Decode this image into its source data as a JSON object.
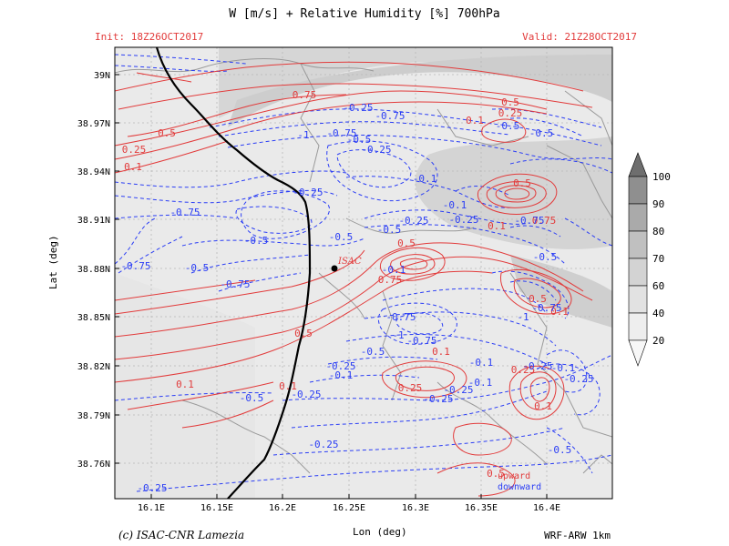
{
  "header": {
    "title": "W [m/s] + Relative Humidity [%] 700hPa",
    "init": "Init: 18Z26OCT2017",
    "valid": "Valid: 21Z28OCT2017"
  },
  "axes": {
    "xlabel": "Lon (deg)",
    "ylabel": "Lat (deg)",
    "x_ticks": [
      "16.1E",
      "16.15E",
      "16.2E",
      "16.25E",
      "16.3E",
      "16.35E",
      "16.4E"
    ],
    "y_ticks": [
      "39N",
      "38.97N",
      "38.94N",
      "38.91N",
      "38.88N",
      "38.85N",
      "38.82N",
      "38.79N",
      "38.76N"
    ]
  },
  "colorbar": {
    "ticks": [
      "100",
      "90",
      "80",
      "70",
      "60",
      "40",
      "20"
    ]
  },
  "legend": {
    "upward": "upward",
    "downward": "downward"
  },
  "station": {
    "label": "ISAC",
    "lon": 16.237,
    "lat": 38.877
  },
  "footer": {
    "copyright": "(c) ISAC-CNR Lamezia",
    "model": "WRF-ARW 1km"
  },
  "contour_labels": {
    "positive": [
      "0.75",
      "0.5",
      "0.25",
      "0.1",
      "0.5",
      "0.25",
      "0.1",
      "0.5",
      "0.75",
      "0.5",
      "0.75",
      "0.1",
      "0.5",
      "0.1",
      "0.25",
      "0.1",
      "0.1",
      "0.25",
      "0.1",
      "0.5",
      "0.5",
      "0.1"
    ],
    "negative": [
      "-0.25",
      "-0.75",
      "-0.5",
      "-1",
      "-0.75",
      "-0.5",
      "-0.25",
      "-0.1",
      "-0.5",
      "-0.25",
      "-0.75",
      "-0.1",
      "-0.25",
      "-0.75",
      "-0.5",
      "-0.75",
      "-0.5",
      "-0.5",
      "-0.25",
      "-0.5",
      "-0.1",
      "-0.5",
      "-0.75",
      "-1",
      "-0.75",
      "-0.5",
      "-0.25",
      "-0.1",
      "-0.25",
      "-0.1",
      "-0.5",
      "-0.25",
      "-0.25",
      "-0.75",
      "-0.25",
      "-0.1",
      "-0.25",
      "-1",
      "-0.75",
      "-0.1",
      "-0.25",
      "-0.5",
      "-0.25"
    ]
  },
  "colors": {
    "up": "#e23b3b",
    "down": "#2b3ef5",
    "coast": "#000000",
    "land_border": "#8a8a8a"
  }
}
